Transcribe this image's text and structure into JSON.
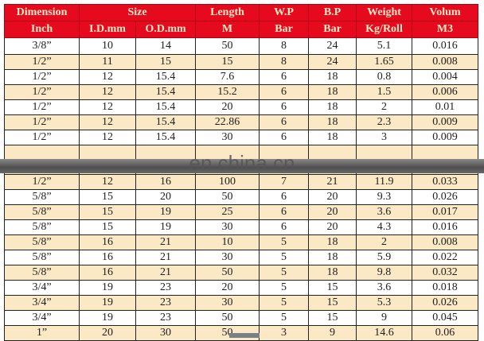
{
  "header": {
    "row1": [
      "Dimension",
      "Size",
      "Length",
      "W.P",
      "B.P",
      "Weight",
      "Volum"
    ],
    "row2": [
      "Inch",
      "I.D.mm",
      "O.D.mm",
      "M",
      "Bar",
      "Bar",
      "Kg/Roll",
      "M3"
    ]
  },
  "rows_top": [
    [
      "3/8”",
      "10",
      "14",
      "50",
      "8",
      "24",
      "5.1",
      "0.016"
    ],
    [
      "1/2”",
      "11",
      "15",
      "15",
      "8",
      "24",
      "1.65",
      "0.008"
    ],
    [
      "1/2”",
      "12",
      "15.4",
      "7.6",
      "6",
      "18",
      "0.8",
      "0.004"
    ],
    [
      "1/2”",
      "12",
      "15.4",
      "15.2",
      "6",
      "18",
      "1.5",
      "0.006"
    ],
    [
      "1/2”",
      "12",
      "15.4",
      "20",
      "6",
      "18",
      "2",
      "0.01"
    ],
    [
      "1/2”",
      "12",
      "15.4",
      "22.86",
      "6",
      "18",
      "2.3",
      "0.009"
    ],
    [
      "1/2”",
      "12",
      "15.4",
      "30",
      "6",
      "18",
      "3",
      "0.009"
    ]
  ],
  "rows_bottom": [
    [
      "1/2”",
      "12",
      "16",
      "100",
      "7",
      "21",
      "11.9",
      "0.033"
    ],
    [
      "5/8”",
      "15",
      "20",
      "50",
      "6",
      "20",
      "9.3",
      "0.026"
    ],
    [
      "5/8”",
      "15",
      "19",
      "25",
      "6",
      "20",
      "3.6",
      "0.017"
    ],
    [
      "5/8”",
      "15",
      "19",
      "30",
      "6",
      "20",
      "4.3",
      "0.016"
    ],
    [
      "5/8”",
      "16",
      "21",
      "10",
      "5",
      "18",
      "2",
      "0.008"
    ],
    [
      "5/8”",
      "16",
      "21",
      "30",
      "5",
      "18",
      "5.9",
      "0.022"
    ],
    [
      "5/8”",
      "16",
      "21",
      "50",
      "5",
      "18",
      "9.8",
      "0.032"
    ],
    [
      "3/4”",
      "19",
      "23",
      "20",
      "5",
      "15",
      "3.6",
      "0.018"
    ],
    [
      "3/4”",
      "19",
      "23",
      "30",
      "5",
      "15",
      "5.3",
      "0.026"
    ],
    [
      "3/4”",
      "19",
      "23",
      "50",
      "5",
      "15",
      "9",
      "0.045"
    ],
    [
      "1”",
      "20",
      "30",
      "50",
      "3",
      "9",
      "14.6",
      "0.06"
    ]
  ],
  "watermark": "en.china.cn",
  "colors": {
    "header_bg": "#e60a1e",
    "header_text": "#fbe9c8",
    "row_alt": "#fbe8c4"
  }
}
